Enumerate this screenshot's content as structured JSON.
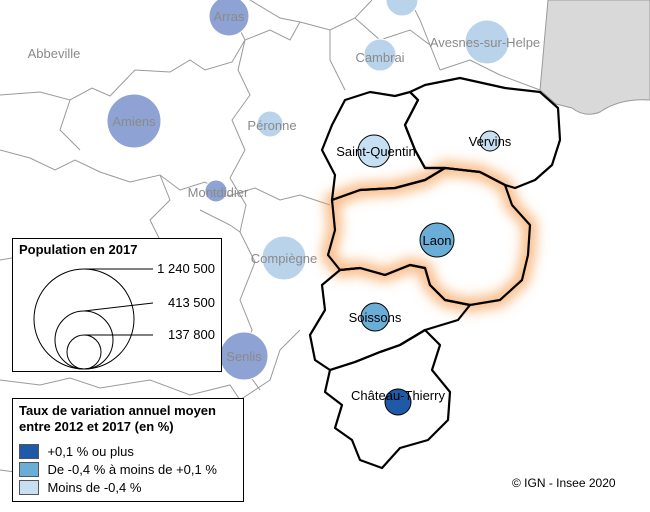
{
  "map": {
    "cities_context": [
      {
        "name": "Arras",
        "fill": "#8ea3d3"
      },
      {
        "name": "Abbeville",
        "fill": "#ffffff"
      },
      {
        "name": "Cambrai",
        "fill": "#b9d3eb"
      },
      {
        "name": "Avesnes-sur-Helpe",
        "fill": "#b9d3eb"
      },
      {
        "name": "Amiens",
        "fill": "#8ea3d3"
      },
      {
        "name": "Péronne",
        "fill": "#b9d3eb"
      },
      {
        "name": "Montdidier",
        "fill": "#8ea3d3"
      },
      {
        "name": "Compiègne",
        "fill": "#b9d3eb"
      },
      {
        "name": "Senlis",
        "fill": "#8ea3d3"
      }
    ],
    "cities_main": [
      {
        "name": "Saint-Quentin",
        "fill": "#c6dff2"
      },
      {
        "name": "Vervins",
        "fill": "#c6dff2"
      },
      {
        "name": "Laon",
        "fill": "#6aaed8"
      },
      {
        "name": "Soissons",
        "fill": "#6aaed8"
      },
      {
        "name": "Château-Thierry",
        "fill": "#1f5aa8"
      }
    ],
    "highlight_color": "#f7a15a",
    "outside_area_color": "#d9d9d9"
  },
  "legend_population": {
    "title": "Population en 2017",
    "values": [
      "1 240 500",
      "413 500",
      "137 800"
    ]
  },
  "legend_rate": {
    "title_line1": "Taux de variation annuel moyen",
    "title_line2": "entre 2012 et 2017 (en %)",
    "items": [
      {
        "label": "+0,1 % ou plus",
        "color": "#1f5aa8"
      },
      {
        "label": "De -0,4 % à moins de +0,1 %",
        "color": "#6aaed8"
      },
      {
        "label": "Moins de -0,4 %",
        "color": "#c6dff2"
      }
    ]
  },
  "credit": "© IGN - Insee 2020"
}
